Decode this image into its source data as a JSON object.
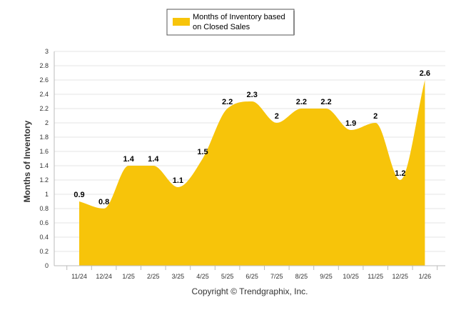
{
  "chart_data": {
    "type": "area",
    "title": "",
    "legend": {
      "label_line1": "Months of Inventory based",
      "label_line2": "on Closed Sales",
      "placement": "top-center"
    },
    "categories": [
      "11/24",
      "12/24",
      "1/25",
      "2/25",
      "3/25",
      "4/25",
      "5/25",
      "6/25",
      "7/25",
      "8/25",
      "9/25",
      "10/25",
      "11/25",
      "12/25",
      "1/26"
    ],
    "series": [
      {
        "name": "Months of Inventory based on Closed Sales",
        "values": [
          0.9,
          0.8,
          1.4,
          1.4,
          1.1,
          1.5,
          2.2,
          2.3,
          2,
          2.2,
          2.2,
          1.9,
          2,
          1.2,
          2.6
        ],
        "data_labels": [
          "0.9",
          "0.8",
          "1.4",
          "1.4",
          "1.1",
          "1.5",
          "2.2",
          "2.3",
          "2",
          "2.2",
          "2.2",
          "1.9",
          "2",
          "1.2",
          "2.6"
        ]
      }
    ],
    "xlabel": "",
    "ylabel": "Months of Inventory",
    "ylim": [
      0,
      3
    ],
    "yticks": [
      "0",
      "0.2",
      "0.4",
      "0.6",
      "0.8",
      "1",
      "1.2",
      "1.4",
      "1.6",
      "1.8",
      "2",
      "2.2",
      "2.4",
      "2.6",
      "2.8",
      "3"
    ],
    "grid": true,
    "footer": "Copyright © Trendgraphix, Inc.",
    "colors": {
      "fill": "#F7C40A",
      "grid": "#E6E6E6",
      "axis": "#BBBBBB"
    }
  }
}
